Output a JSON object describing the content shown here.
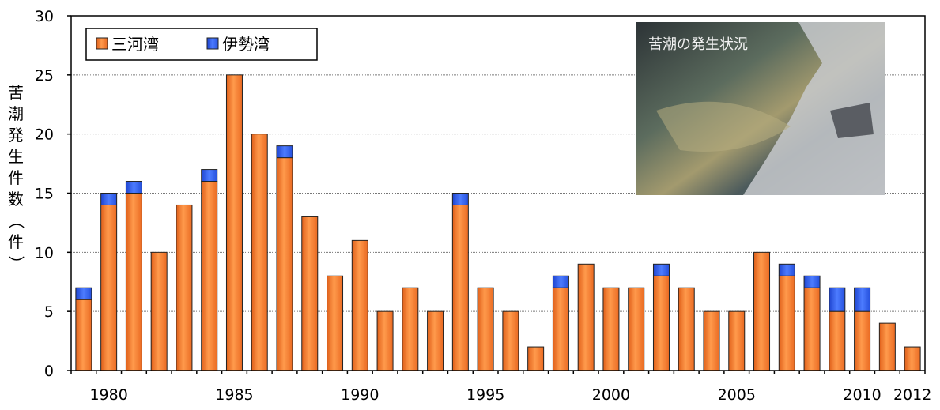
{
  "chart_data": {
    "type": "bar",
    "stacked": true,
    "x": [
      1979,
      1980,
      1981,
      1982,
      1983,
      1984,
      1985,
      1986,
      1987,
      1988,
      1989,
      1990,
      1991,
      1992,
      1993,
      1994,
      1995,
      1996,
      1997,
      1998,
      1999,
      2000,
      2001,
      2002,
      2003,
      2004,
      2005,
      2006,
      2007,
      2008,
      2009,
      2010,
      2011,
      2012
    ],
    "series": [
      {
        "name": "三河湾",
        "color": "#f07a2a",
        "values": [
          6,
          14,
          15,
          10,
          14,
          16,
          25,
          20,
          18,
          13,
          8,
          11,
          5,
          7,
          5,
          14,
          7,
          5,
          2,
          7,
          9,
          7,
          7,
          8,
          7,
          5,
          5,
          10,
          8,
          7,
          5,
          5,
          4,
          2
        ]
      },
      {
        "name": "伊勢湾",
        "color": "#2e5ce6",
        "values": [
          1,
          1,
          1,
          0,
          0,
          1,
          0,
          0,
          1,
          0,
          0,
          0,
          0,
          0,
          0,
          1,
          0,
          0,
          0,
          1,
          0,
          0,
          0,
          1,
          0,
          0,
          0,
          0,
          1,
          1,
          2,
          2,
          0,
          0
        ]
      }
    ],
    "x_tick_labels": [
      "1980",
      "1985",
      "1990",
      "1995",
      "2000",
      "2005",
      "2010",
      "2012"
    ],
    "y_ticks": [
      0,
      5,
      10,
      15,
      20,
      25,
      30
    ],
    "ylim": [
      0,
      30
    ],
    "ylabel": "苦潮発生件数（件）",
    "xlabel": "",
    "legend_position": "top-left",
    "grid": "horizontal-dotted",
    "inset_photo_caption": "苦潮の発生状況"
  }
}
